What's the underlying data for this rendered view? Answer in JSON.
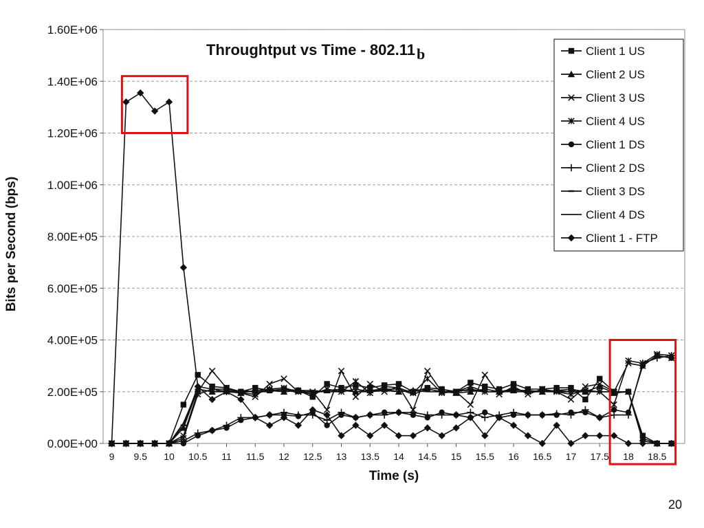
{
  "page_number": "20",
  "chart_data": {
    "type": "line",
    "title": "Throughtput vs Time - 802.11",
    "title_suffix": "b",
    "xlabel": "Time (s)",
    "ylabel": "Bits per Second (bps)",
    "ylim": [
      0,
      1600000
    ],
    "xlim": [
      9,
      18.75
    ],
    "grid": "horizontal dashed",
    "legend_position": "top-right",
    "y_ticks": [
      "0.00E+00",
      "2.00E+05",
      "4.00E+05",
      "6.00E+05",
      "8.00E+05",
      "1.00E+06",
      "1.20E+06",
      "1.40E+06",
      "1.60E+06"
    ],
    "y_tick_values": [
      0,
      200000,
      400000,
      600000,
      800000,
      1000000,
      1200000,
      1400000,
      1600000
    ],
    "x_ticks": [
      "9",
      "9.5",
      "10",
      "10.5",
      "11",
      "11.5",
      "12",
      "12.5",
      "13",
      "13.5",
      "14",
      "14.5",
      "15",
      "15.5",
      "16",
      "16.5",
      "17",
      "17.5",
      "18",
      "18.5"
    ],
    "x": [
      9,
      9.25,
      9.5,
      9.75,
      10,
      10.25,
      10.5,
      10.75,
      11,
      11.25,
      11.5,
      11.75,
      12,
      12.25,
      12.5,
      12.75,
      13,
      13.25,
      13.5,
      13.75,
      14,
      14.25,
      14.5,
      14.75,
      15,
      15.25,
      15.5,
      15.75,
      16,
      16.25,
      16.5,
      16.75,
      17,
      17.25,
      17.5,
      17.75,
      18,
      18.25,
      18.5,
      18.75
    ],
    "series": [
      {
        "name": "Client 1 US",
        "marker": "square",
        "values": [
          0,
          0,
          0,
          0,
          0,
          150000,
          265000,
          220000,
          215000,
          200000,
          215000,
          205000,
          210000,
          205000,
          180000,
          230000,
          215000,
          225000,
          215000,
          225000,
          230000,
          200000,
          215000,
          210000,
          200000,
          235000,
          220000,
          210000,
          230000,
          210000,
          210000,
          215000,
          215000,
          170000,
          250000,
          200000,
          200000,
          30000,
          0,
          0
        ]
      },
      {
        "name": "Client 2 US",
        "marker": "triangle",
        "values": [
          0,
          0,
          0,
          0,
          0,
          60000,
          210000,
          200000,
          205000,
          195000,
          205000,
          210000,
          200000,
          205000,
          195000,
          205000,
          210000,
          200000,
          205000,
          210000,
          200000,
          205000,
          210000,
          200000,
          195000,
          200000,
          210000,
          200000,
          205000,
          205000,
          200000,
          205000,
          210000,
          200000,
          220000,
          195000,
          200000,
          20000,
          0,
          0
        ]
      },
      {
        "name": "Client 3 US",
        "marker": "x",
        "values": [
          0,
          0,
          0,
          0,
          0,
          30000,
          200000,
          280000,
          215000,
          195000,
          180000,
          230000,
          250000,
          200000,
          200000,
          130000,
          280000,
          180000,
          230000,
          200000,
          220000,
          130000,
          280000,
          200000,
          200000,
          150000,
          265000,
          190000,
          220000,
          190000,
          210000,
          200000,
          170000,
          220000,
          230000,
          200000,
          310000,
          300000,
          340000,
          330000
        ]
      },
      {
        "name": "Client 4 US",
        "marker": "asterisk",
        "values": [
          0,
          0,
          0,
          0,
          0,
          20000,
          190000,
          210000,
          200000,
          195000,
          190000,
          210000,
          215000,
          200000,
          190000,
          210000,
          200000,
          240000,
          195000,
          220000,
          215000,
          195000,
          250000,
          195000,
          200000,
          220000,
          200000,
          200000,
          210000,
          200000,
          200000,
          200000,
          190000,
          205000,
          200000,
          150000,
          320000,
          310000,
          345000,
          340000
        ]
      },
      {
        "name": "Client 1 DS",
        "marker": "circle",
        "values": [
          0,
          0,
          0,
          0,
          0,
          0,
          30000,
          50000,
          60000,
          90000,
          100000,
          110000,
          110000,
          105000,
          120000,
          70000,
          110000,
          100000,
          110000,
          120000,
          120000,
          110000,
          100000,
          120000,
          110000,
          100000,
          120000,
          100000,
          110000,
          110000,
          110000,
          110000,
          120000,
          120000,
          100000,
          130000,
          120000,
          300000,
          340000,
          330000
        ]
      },
      {
        "name": "Client 2 DS",
        "marker": "plus",
        "values": [
          0,
          0,
          0,
          0,
          0,
          10000,
          40000,
          50000,
          70000,
          100000,
          100000,
          110000,
          120000,
          110000,
          110000,
          90000,
          120000,
          100000,
          110000,
          110000,
          120000,
          120000,
          110000,
          110000,
          110000,
          120000,
          100000,
          110000,
          120000,
          110000,
          110000,
          115000,
          110000,
          130000,
          100000,
          110000,
          110000,
          310000,
          330000,
          340000
        ]
      },
      {
        "name": "Client 3 DS",
        "marker": "dash",
        "values": [
          0,
          0,
          0,
          0,
          0,
          70000,
          220000,
          210000,
          210000,
          200000,
          200000,
          200000,
          210000,
          195000,
          200000,
          200000,
          200000,
          210000,
          200000,
          210000,
          210000,
          190000,
          210000,
          200000,
          200000,
          210000,
          200000,
          200000,
          210000,
          200000,
          205000,
          200000,
          200000,
          205000,
          200000,
          200000,
          200000,
          10000,
          0,
          0
        ]
      },
      {
        "name": "Client 4 DS",
        "marker": "line",
        "values": [
          0,
          0,
          0,
          0,
          0,
          80000,
          210000,
          200000,
          200000,
          205000,
          200000,
          205000,
          200000,
          205000,
          205000,
          200000,
          205000,
          200000,
          200000,
          205000,
          200000,
          205000,
          200000,
          200000,
          205000,
          205000,
          200000,
          200000,
          200000,
          200000,
          200000,
          205000,
          200000,
          200000,
          200000,
          200000,
          200000,
          10000,
          0,
          0
        ]
      },
      {
        "name": "Client 1 - FTP",
        "marker": "diamond",
        "values": [
          0,
          1320000,
          1355000,
          1285000,
          1320000,
          680000,
          220000,
          170000,
          200000,
          170000,
          100000,
          70000,
          100000,
          70000,
          130000,
          110000,
          30000,
          70000,
          30000,
          70000,
          30000,
          30000,
          60000,
          30000,
          60000,
          100000,
          30000,
          100000,
          70000,
          30000,
          0,
          70000,
          0,
          30000,
          30000,
          30000,
          0,
          0,
          0,
          0
        ]
      }
    ],
    "highlight_boxes": [
      {
        "x_range": [
          9.25,
          10.25
        ],
        "y_range": [
          1200000,
          1420000
        ]
      },
      {
        "x_range": [
          17.75,
          18.75
        ],
        "y_range": [
          -80000,
          400000
        ]
      }
    ]
  }
}
